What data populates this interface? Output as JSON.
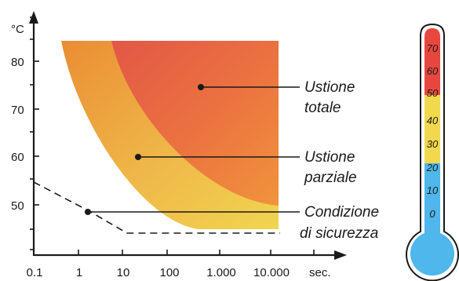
{
  "chart_data": {
    "type": "area",
    "x_axis": {
      "unit": "sec.",
      "scale": "log",
      "tick_labels": [
        "0.1",
        "1",
        "10",
        "100",
        "1.000",
        "10.000"
      ]
    },
    "y_axis": {
      "unit": "°C",
      "tick_labels": [
        "50",
        "60",
        "70",
        "80"
      ]
    },
    "zones": [
      {
        "name": "total_burn",
        "label_line1": "Ustione",
        "label_line2": "totale",
        "color": "#e24a3f"
      },
      {
        "name": "partial_burn",
        "label_line1": "Ustione",
        "label_line2": "parziale",
        "color": "#ee8a33"
      },
      {
        "name": "safety_condition",
        "label_line1": "Condizione",
        "label_line2": "di sicurezza",
        "color": "#111111"
      }
    ],
    "safety_threshold_curve": [
      {
        "x": 0.1,
        "y": 54
      },
      {
        "x": 1.4,
        "y": 48
      },
      {
        "x": 8,
        "y": 43
      },
      {
        "x": 12000,
        "y": 43
      }
    ]
  },
  "thermometer": {
    "scale": [
      "70",
      "60",
      "50",
      "40",
      "30",
      "20",
      "10",
      "0"
    ],
    "colors": {
      "hot": "#e8473f",
      "warm": "#f2d84d",
      "cool": "#4fb7ec"
    }
  }
}
